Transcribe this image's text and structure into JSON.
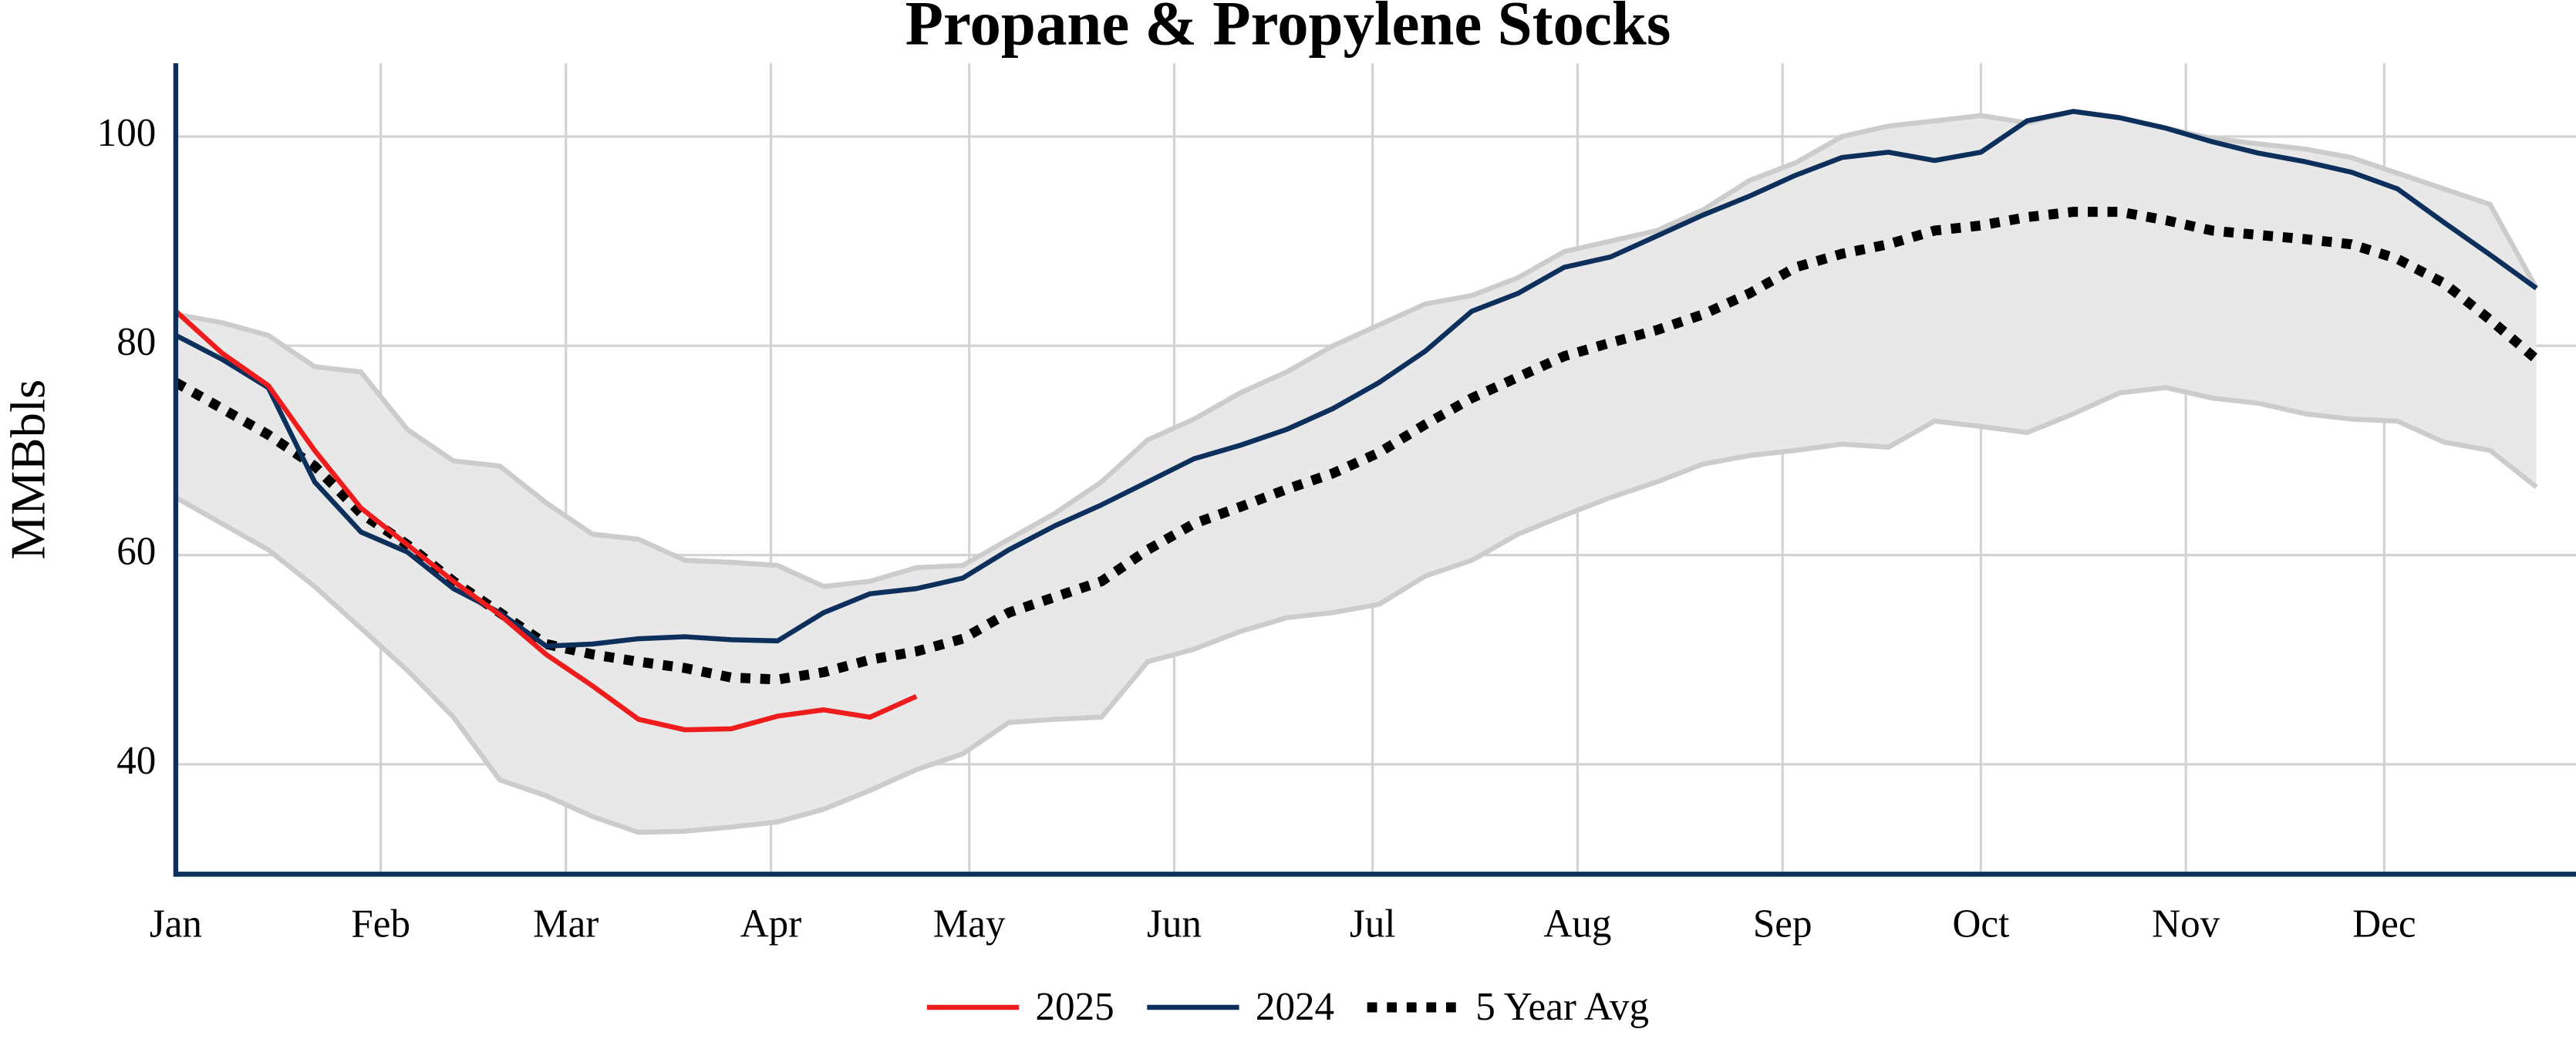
{
  "chart_data": {
    "type": "line",
    "title": "Propane & Propylene Stocks",
    "y_label": "MMBbls",
    "x": [
      0,
      7,
      14,
      21,
      28,
      35,
      42,
      49,
      56,
      63,
      70,
      77,
      84,
      91,
      98,
      105,
      112,
      119,
      126,
      133,
      140,
      147,
      154,
      161,
      168,
      175,
      182,
      189,
      196,
      203,
      210,
      217,
      224,
      231,
      238,
      245,
      252,
      259,
      266,
      273,
      280,
      287,
      294,
      301,
      308,
      315,
      322,
      329,
      336,
      343,
      350,
      357
    ],
    "xlim": [
      0,
      363
    ],
    "xticks": [
      {
        "value": 0,
        "label": "Jan"
      },
      {
        "value": 31,
        "label": "Feb"
      },
      {
        "value": 59,
        "label": "Mar"
      },
      {
        "value": 90,
        "label": "Apr"
      },
      {
        "value": 120,
        "label": "May"
      },
      {
        "value": 151,
        "label": "Jun"
      },
      {
        "value": 181,
        "label": "Jul"
      },
      {
        "value": 212,
        "label": "Aug"
      },
      {
        "value": 243,
        "label": "Sep"
      },
      {
        "value": 273,
        "label": "Oct"
      },
      {
        "value": 304,
        "label": "Nov"
      },
      {
        "value": 334,
        "label": "Dec"
      }
    ],
    "ylim": [
      29.5,
      107
    ],
    "yticks": [
      40,
      60,
      80,
      100
    ],
    "grid": true,
    "band": {
      "color": "#e8e8e8",
      "edge_color": "#cccccc",
      "upper": [
        83,
        82.2,
        81,
        78,
        77.5,
        72,
        69,
        68.5,
        65,
        62,
        61.5,
        59.5,
        59.3,
        59,
        57,
        57.5,
        58.8,
        59,
        61.5,
        64,
        67,
        71,
        73,
        75.5,
        77.5,
        80,
        82,
        84,
        84.8,
        86.5,
        89,
        90,
        91,
        93,
        95.8,
        97.5,
        100,
        101,
        101.5,
        102,
        101.3,
        102.4,
        101.8,
        100.8,
        99.8,
        99.3,
        98.8,
        98,
        96.5,
        95,
        93.5,
        85.5
      ],
      "lower": [
        65.5,
        63,
        60.5,
        57,
        53,
        49,
        44.5,
        38.5,
        37,
        35,
        33.5,
        33.6,
        34,
        34.5,
        35.7,
        37.5,
        39.5,
        41,
        44,
        44.3,
        44.5,
        49.8,
        51,
        52.7,
        54,
        54.5,
        55.3,
        58,
        59.5,
        62,
        63.8,
        65.5,
        67,
        68.7,
        69.5,
        70,
        70.6,
        70.3,
        72.8,
        72.3,
        71.7,
        73.5,
        75.5,
        76,
        75,
        74.5,
        73.5,
        73,
        72.8,
        70.8,
        70,
        66.5
      ]
    },
    "series": [
      {
        "name": "2025",
        "color": "#ee1c1c",
        "style": "solid",
        "values": [
          83.3,
          79.3,
          76.2,
          70,
          64.5,
          61,
          57.5,
          54.3,
          50.5,
          47.5,
          44.3,
          43.3,
          43.4,
          44.6,
          45.2,
          44.5,
          46.5,
          null,
          null,
          null,
          null,
          null,
          null,
          null,
          null,
          null,
          null,
          null,
          null,
          null,
          null,
          null,
          null,
          null,
          null,
          null,
          null,
          null,
          null,
          null,
          null,
          null,
          null,
          null,
          null,
          null,
          null,
          null,
          null,
          null,
          null,
          null
        ]
      },
      {
        "name": "2024",
        "color": "#0d2f5c",
        "style": "solid",
        "values": [
          81,
          78.7,
          76,
          67,
          62.2,
          60.3,
          56.8,
          54.5,
          51.3,
          51.5,
          52,
          52.2,
          51.9,
          51.8,
          54.5,
          56.3,
          56.8,
          57.8,
          60.5,
          62.8,
          64.8,
          67,
          69.2,
          70.5,
          72,
          74,
          76.5,
          79.5,
          83.3,
          85,
          87.5,
          88.5,
          90.5,
          92.5,
          94.3,
          96.3,
          98,
          98.5,
          97.7,
          98.5,
          101.5,
          102.4,
          101.8,
          100.8,
          99.5,
          98.4,
          97.6,
          96.6,
          95,
          91.8,
          88.7,
          85.5
        ]
      },
      {
        "name": "5 Year Avg",
        "color": "#000000",
        "style": "dotted",
        "values": [
          76.5,
          74,
          71.5,
          68.5,
          64,
          61,
          57.5,
          54.5,
          51.5,
          50.5,
          49.8,
          49.2,
          48.3,
          48.1,
          48.8,
          50,
          50.8,
          52,
          54.5,
          56,
          57.5,
          60.5,
          63,
          64.6,
          66.3,
          67.8,
          69.8,
          72.5,
          75,
          77,
          79,
          80.3,
          81.5,
          83,
          85,
          87.5,
          88.8,
          89.7,
          91,
          91.5,
          92.3,
          92.8,
          92.8,
          92,
          91,
          90.6,
          90.2,
          89.7,
          88.3,
          86,
          82.5,
          78.7
        ]
      }
    ]
  }
}
